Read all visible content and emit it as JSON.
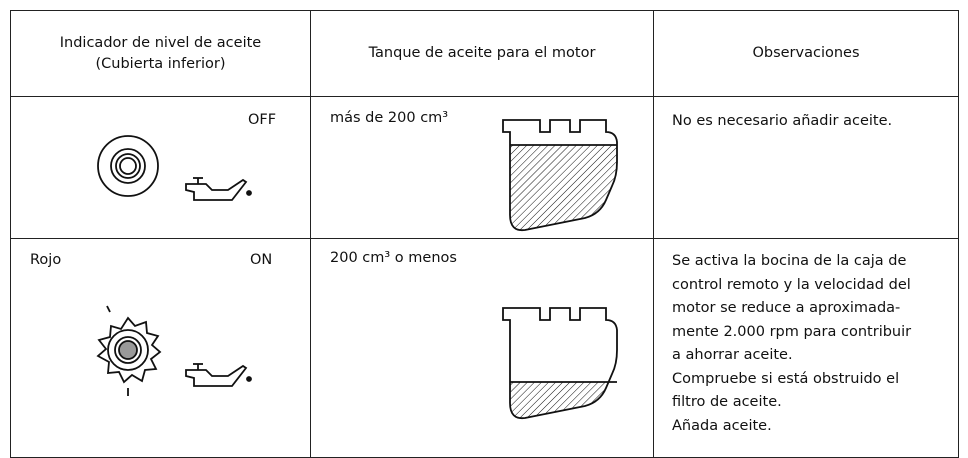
{
  "table": {
    "header": [
      [
        "Indicador de nivel de aceite",
        "(Cubierta inferior)"
      ],
      "Tanque de aceite para el motor",
      "Observaciones"
    ],
    "rows": [
      [
        {
          "state": "OFF"
        },
        "más de 200 cm³",
        [
          "No es necesario añadir aceite."
        ]
      ],
      [
        {
          "color": "Rojo",
          "state": "ON"
        },
        "200 cm³ o menos",
        [
          "Se activa la bocina de la caja de",
          "control remoto y la velocidad del",
          "motor se reduce a aproximada-",
          "mente 2.000 rpm para contribuir",
          "a ahorrar aceite.",
          "Compruebe si está obstruido el",
          "filtro de aceite.",
          "Añada aceite."
        ]
      ]
    ]
  }
}
